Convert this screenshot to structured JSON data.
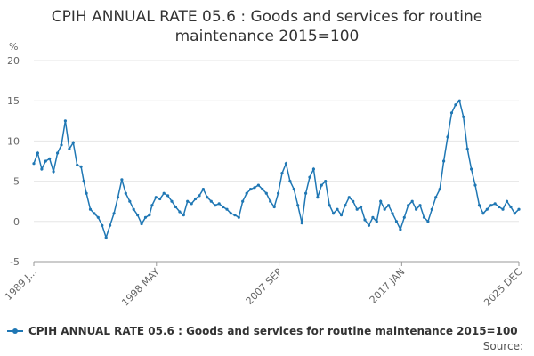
{
  "chart_data": {
    "type": "line",
    "title": "CPIH ANNUAL RATE 05.6 : Goods and services for routine maintenance 2015=100",
    "ylabel": "%",
    "ylim": [
      -5,
      20
    ],
    "yticks": [
      "20",
      "15",
      "10",
      "5",
      "0",
      "-5"
    ],
    "ytick_values": [
      20,
      15,
      10,
      5,
      0,
      -5
    ],
    "xlim": [
      1989.0,
      2025.917
    ],
    "x_ticks": [
      {
        "label": "1989 J...",
        "x": 1989.0
      },
      {
        "label": "1998 MAY",
        "x": 1998.333
      },
      {
        "label": "2007 SEP",
        "x": 2007.667
      },
      {
        "label": "2017 JAN",
        "x": 2017.0
      },
      {
        "label": "2025 DEC",
        "x": 2025.917
      }
    ],
    "series": [
      {
        "name": "CPIH ANNUAL RATE 05.6 : Goods and services for routine maintenance 2015=100",
        "color": "#1f77b4",
        "x": [
          1989.0,
          1989.3,
          1989.6,
          1989.9,
          1990.2,
          1990.5,
          1990.8,
          1991.1,
          1991.4,
          1991.7,
          1992.0,
          1992.3,
          1992.6,
          1992.8,
          1993.0,
          1993.3,
          1993.6,
          1993.9,
          1994.2,
          1994.5,
          1994.8,
          1995.1,
          1995.4,
          1995.7,
          1996.0,
          1996.3,
          1996.6,
          1996.9,
          1997.2,
          1997.5,
          1997.8,
          1998.0,
          1998.3,
          1998.6,
          1998.9,
          1999.2,
          1999.5,
          1999.8,
          2000.1,
          2000.4,
          2000.7,
          2001.0,
          2001.3,
          2001.6,
          2001.9,
          2002.2,
          2002.5,
          2002.8,
          2003.1,
          2003.4,
          2003.7,
          2004.0,
          2004.3,
          2004.6,
          2004.9,
          2005.2,
          2005.5,
          2005.8,
          2006.1,
          2006.4,
          2006.7,
          2007.0,
          2007.3,
          2007.6,
          2007.9,
          2008.2,
          2008.5,
          2008.8,
          2009.1,
          2009.4,
          2009.7,
          2010.0,
          2010.3,
          2010.6,
          2010.9,
          2011.2,
          2011.5,
          2011.8,
          2012.1,
          2012.4,
          2012.7,
          2013.0,
          2013.3,
          2013.6,
          2013.9,
          2014.2,
          2014.5,
          2014.8,
          2015.1,
          2015.4,
          2015.7,
          2016.0,
          2016.3,
          2016.6,
          2016.9,
          2017.2,
          2017.5,
          2017.8,
          2018.1,
          2018.4,
          2018.7,
          2019.0,
          2019.3,
          2019.6,
          2019.9,
          2020.2,
          2020.5,
          2020.8,
          2021.1,
          2021.4,
          2021.7,
          2022.0,
          2022.3,
          2022.6,
          2022.9,
          2023.2,
          2023.5,
          2023.8,
          2024.1,
          2024.4,
          2024.7,
          2025.0,
          2025.3,
          2025.6,
          2025.917
        ],
        "values": [
          7.2,
          8.5,
          6.5,
          7.5,
          7.8,
          6.2,
          8.5,
          9.5,
          12.5,
          9.0,
          9.8,
          7.0,
          6.8,
          5.0,
          3.5,
          1.5,
          1.0,
          0.5,
          -0.5,
          -2.0,
          -0.5,
          1.0,
          3.0,
          5.2,
          3.5,
          2.5,
          1.5,
          0.8,
          -0.3,
          0.5,
          0.8,
          2.0,
          3.0,
          2.8,
          3.5,
          3.2,
          2.5,
          1.8,
          1.2,
          0.8,
          2.5,
          2.2,
          2.8,
          3.2,
          4.0,
          3.0,
          2.5,
          2.0,
          2.2,
          1.8,
          1.5,
          1.0,
          0.8,
          0.5,
          2.5,
          3.5,
          4.0,
          4.2,
          4.5,
          4.0,
          3.5,
          2.5,
          1.8,
          3.5,
          6.0,
          7.2,
          5.0,
          4.0,
          2.0,
          -0.2,
          3.5,
          5.5,
          6.5,
          3.0,
          4.5,
          5.0,
          2.0,
          1.0,
          1.5,
          0.8,
          2.0,
          3.0,
          2.5,
          1.5,
          1.8,
          0.2,
          -0.5,
          0.5,
          0.0,
          2.5,
          1.5,
          2.0,
          1.0,
          0.0,
          -1.0,
          0.5,
          2.0,
          2.5,
          1.5,
          2.0,
          0.5,
          0.0,
          1.5,
          3.0,
          4.0,
          7.5,
          10.5,
          13.5,
          14.5,
          15.0,
          13.0,
          9.0,
          6.5,
          4.5,
          2.0,
          1.0,
          1.5,
          2.0,
          2.2,
          1.8,
          1.5,
          2.5,
          1.8,
          1.0,
          1.5
        ]
      }
    ],
    "grid": true,
    "legend_position": "bottom-left"
  },
  "legend": {
    "label": "CPIH ANNUAL RATE 05.6 : Goods and services for routine maintenance 2015=100"
  },
  "source": {
    "label": "Source:"
  }
}
